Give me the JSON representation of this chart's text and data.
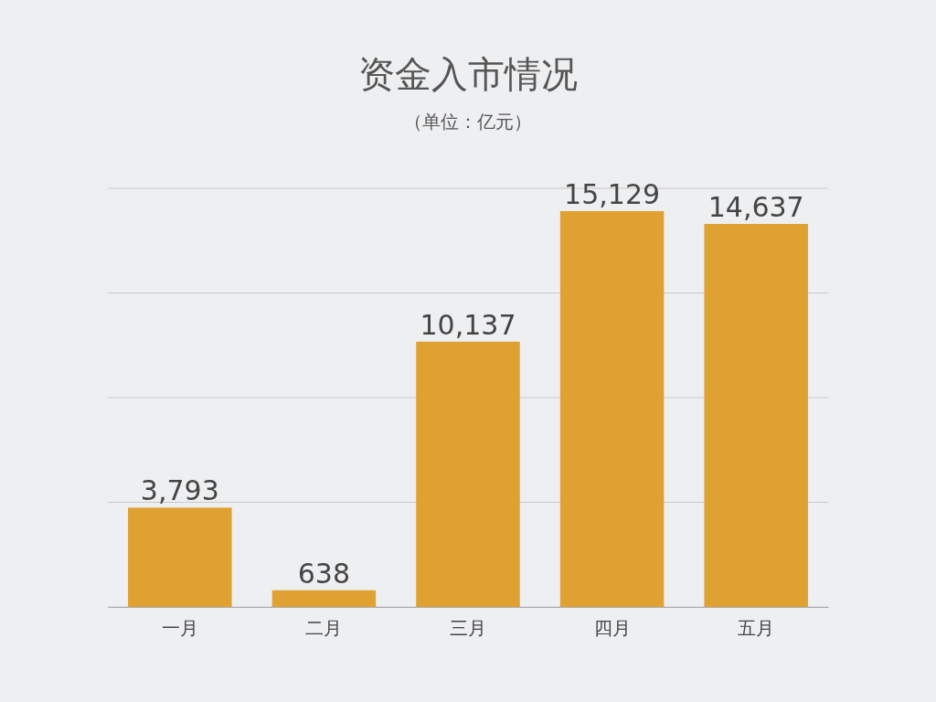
{
  "chart_data": {
    "type": "bar",
    "title": "资金入市情况",
    "subtitle": "（单位：亿元）",
    "categories": [
      "一月",
      "二月",
      "三月",
      "四月",
      "五月"
    ],
    "values": [
      3793,
      638,
      10137,
      15129,
      14637
    ],
    "color": "#e0a133",
    "ylim": [
      0,
      16000
    ],
    "yticks": [
      {
        "value": 0,
        "label": null
      },
      {
        "value": 4000,
        "label": null
      },
      {
        "value": 8000,
        "label": null
      },
      {
        "value": 12000,
        "label": null
      },
      {
        "value": 16000,
        "label": null
      }
    ],
    "value_labels": [
      "3,793",
      "638",
      "10,137",
      "15,129",
      "14,637"
    ],
    "grid": "y",
    "tick_labels": "x"
  }
}
